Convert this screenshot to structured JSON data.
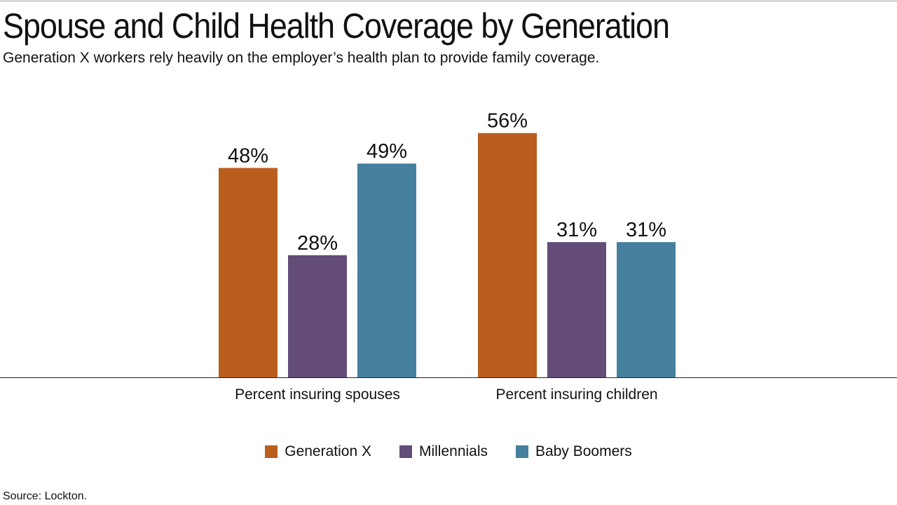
{
  "title": "Spouse and Child Health Coverage by Generation",
  "subtitle": "Generation X workers rely heavily on the employer’s health plan to provide family coverage.",
  "source": "Source: Lockton.",
  "colors": {
    "generation_x": "#b95e1d",
    "millennials": "#634c78",
    "baby_boomers": "#45809e"
  },
  "chart_data": {
    "type": "bar",
    "title": "Spouse and Child Health Coverage by Generation",
    "subtitle": "Generation X workers rely heavily on the employer’s health plan to provide family coverage.",
    "categories": [
      "Percent insuring spouses",
      "Percent insuring children"
    ],
    "series": [
      {
        "name": "Generation X",
        "values": [
          48,
          56
        ],
        "labels": [
          "48%",
          "56%"
        ],
        "color": "#b95e1d"
      },
      {
        "name": "Millennials",
        "values": [
          28,
          31
        ],
        "labels": [
          "28%",
          "31%"
        ],
        "color": "#634c78"
      },
      {
        "name": "Baby Boomers",
        "values": [
          49,
          31
        ],
        "labels": [
          "49%",
          "31%"
        ],
        "color": "#45809e"
      }
    ],
    "ylim": [
      0,
      60
    ],
    "grid": false,
    "legend_position": "bottom",
    "data_labels": true
  }
}
